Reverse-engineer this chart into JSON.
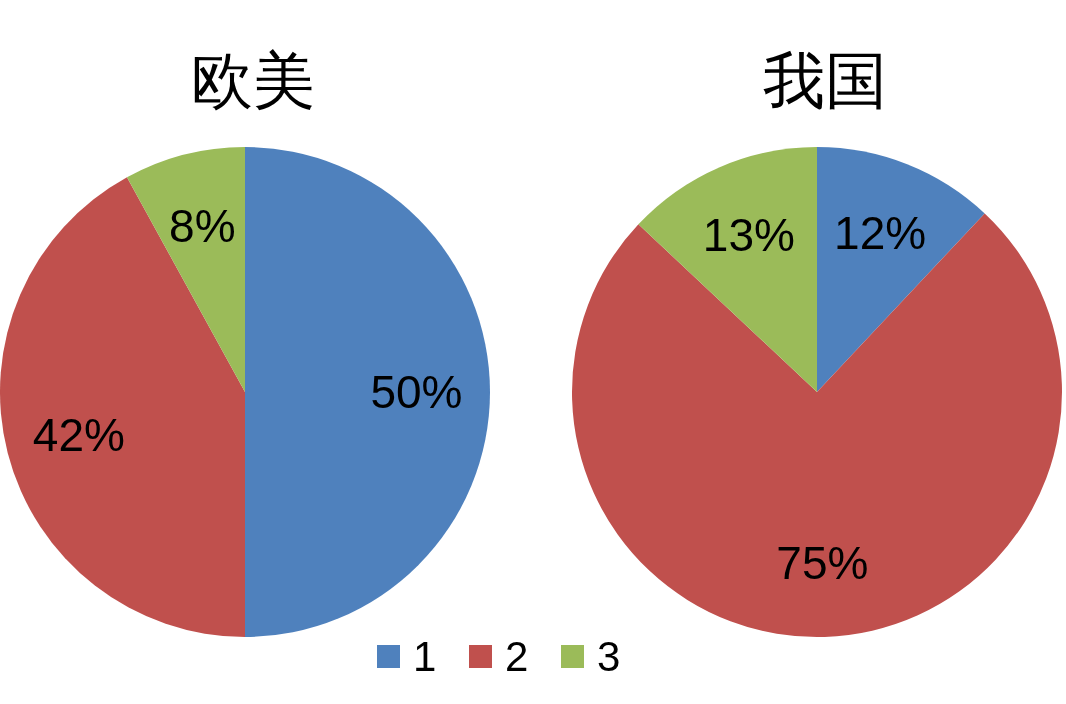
{
  "chart_data": [
    {
      "type": "pie",
      "title": "欧美",
      "categories": [
        "1",
        "2",
        "3"
      ],
      "values": [
        50,
        42,
        8
      ],
      "colors": [
        "#4f81bd",
        "#c0504d",
        "#9bbb59"
      ],
      "value_labels": [
        "50%",
        "42%",
        "8%"
      ],
      "legend": "bottom"
    },
    {
      "type": "pie",
      "title": "我国",
      "categories": [
        null,
        null,
        null
      ],
      "values": [
        12,
        75,
        13
      ],
      "colors": [
        "#4f81bd",
        "#c0504d",
        "#9bbb59"
      ],
      "value_labels": [
        "12%",
        "75%",
        "13%"
      ]
    }
  ]
}
